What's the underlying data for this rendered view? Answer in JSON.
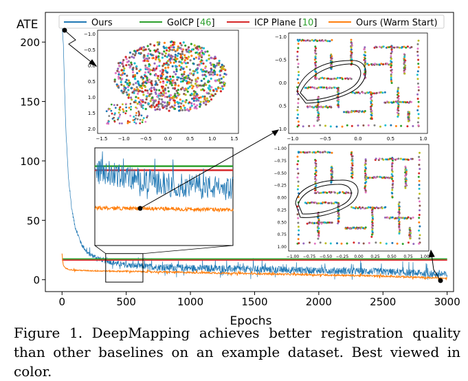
{
  "chart_data": {
    "type": "line",
    "title": "",
    "xlabel": "Epochs",
    "ylabel": "ATE",
    "xlim": [
      -130,
      3050
    ],
    "ylim": [
      -10,
      225
    ],
    "xticks": [
      0,
      500,
      1000,
      1500,
      2000,
      2500,
      3000
    ],
    "yticks": [
      0,
      50,
      100,
      150,
      200
    ],
    "legend_position": "top",
    "series": [
      {
        "name": "Ours",
        "color": "#1f77b4",
        "x": [
          0,
          10,
          20,
          30,
          50,
          75,
          100,
          150,
          200,
          300,
          400,
          500,
          700,
          1000,
          1500,
          2000,
          2500,
          3000
        ],
        "values": [
          214,
          198,
          160,
          125,
          85,
          60,
          45,
          30,
          22,
          17,
          14,
          12,
          10.5,
          9.5,
          8.5,
          7.5,
          6.5,
          4
        ]
      },
      {
        "name": "GoICP",
        "ref": "46",
        "color": "#2ca02c",
        "x": [
          0,
          3000
        ],
        "values": [
          17.5,
          17.5
        ]
      },
      {
        "name": "ICP Plane",
        "ref": "10",
        "color": "#d62728",
        "x": [
          0,
          3000
        ],
        "values": [
          16.5,
          16.5
        ]
      },
      {
        "name": "Ours (Warm Start)",
        "color": "#ff7f0e",
        "x": [
          0,
          5,
          10,
          30,
          60,
          100,
          200,
          300,
          500,
          700,
          1000,
          1500,
          2000,
          2500,
          3000
        ],
        "values": [
          22,
          16,
          12,
          9.5,
          8.5,
          8,
          7.6,
          7.3,
          7.0,
          6.6,
          6.0,
          5.0,
          4.0,
          3.0,
          1.0
        ]
      }
    ],
    "inset_zoom_x": [
      340,
      630
    ],
    "inset_zoom_y": [
      -2,
      22
    ]
  },
  "caption": "Figure 1. DeepMapping achieves better registration quality than other baselines on an example dataset. Best viewed in color.",
  "scatter_insets": [
    {
      "name": "initial-registration-inset",
      "xticks": [
        "−1.5",
        "−1.0",
        "−0.5",
        "0.0",
        "0.5",
        "1.0",
        "1.5"
      ],
      "yticks": [
        "−1.0",
        "−0.5",
        "0.0",
        "0.5",
        "1.0",
        "1.5",
        "2.0"
      ]
    },
    {
      "name": "ours-registration-inset",
      "xticks": [
        "−1.0",
        "−0.5",
        "0.0",
        "0.5",
        "1.0"
      ],
      "yticks": [
        "−1.0",
        "−0.5",
        "0.0",
        "0.5",
        "1.0"
      ]
    },
    {
      "name": "warm-start-registration-inset",
      "xticks": [
        "−1.00",
        "−0.75",
        "−0.50",
        "−0.25",
        "0.00",
        "0.25",
        "0.50",
        "0.75",
        "1.00"
      ],
      "yticks": [
        "−1.00",
        "−0.75",
        "−0.50",
        "−0.25",
        "0.00",
        "0.25",
        "0.50",
        "0.75",
        "1.00"
      ]
    }
  ]
}
